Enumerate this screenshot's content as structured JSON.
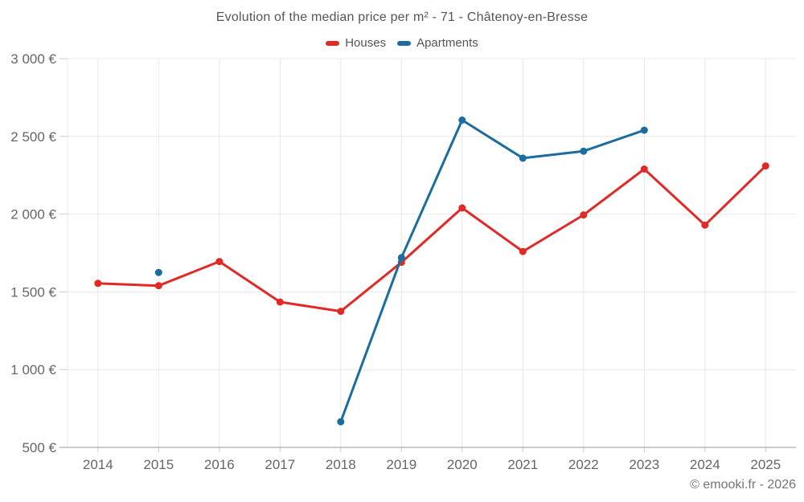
{
  "footer": {
    "copyright": "© emooki.fr - 2026"
  },
  "colors": {
    "grid": "#e8e8e8",
    "axis_line": "#9a9a9a",
    "tick": "#cccccc",
    "axis_text": "#666666",
    "title_text": "#565656",
    "footer_text": "#757575"
  },
  "chart_data": {
    "type": "line",
    "title": "Evolution of the median price per m² - 71 - Châtenoy-en-Bresse",
    "categories": [
      "2014",
      "2015",
      "2016",
      "2017",
      "2018",
      "2019",
      "2020",
      "2021",
      "2022",
      "2023",
      "2024",
      "2025"
    ],
    "series": [
      {
        "name": "Houses",
        "color": "#e12926",
        "values": [
          1555,
          1540,
          1695,
          1435,
          1375,
          1690,
          2040,
          1760,
          1995,
          2290,
          1930,
          2310
        ]
      },
      {
        "name": "Apartments",
        "color": "#1a6d9e",
        "values": [
          null,
          1625,
          null,
          null,
          665,
          1720,
          2605,
          2360,
          2405,
          2540,
          null,
          null
        ]
      }
    ],
    "ylim": [
      500,
      3000
    ],
    "yticks": [
      500,
      1000,
      1500,
      2000,
      2500,
      3000
    ],
    "ytick_labels": [
      "500 €",
      "1 000 €",
      "1 500 €",
      "2 000 €",
      "2 500 €",
      "3 000 €"
    ],
    "xlabel": "",
    "ylabel": "",
    "grid": true,
    "legend_position": "top-center",
    "marker_radius": 4.5,
    "line_width": 3
  }
}
